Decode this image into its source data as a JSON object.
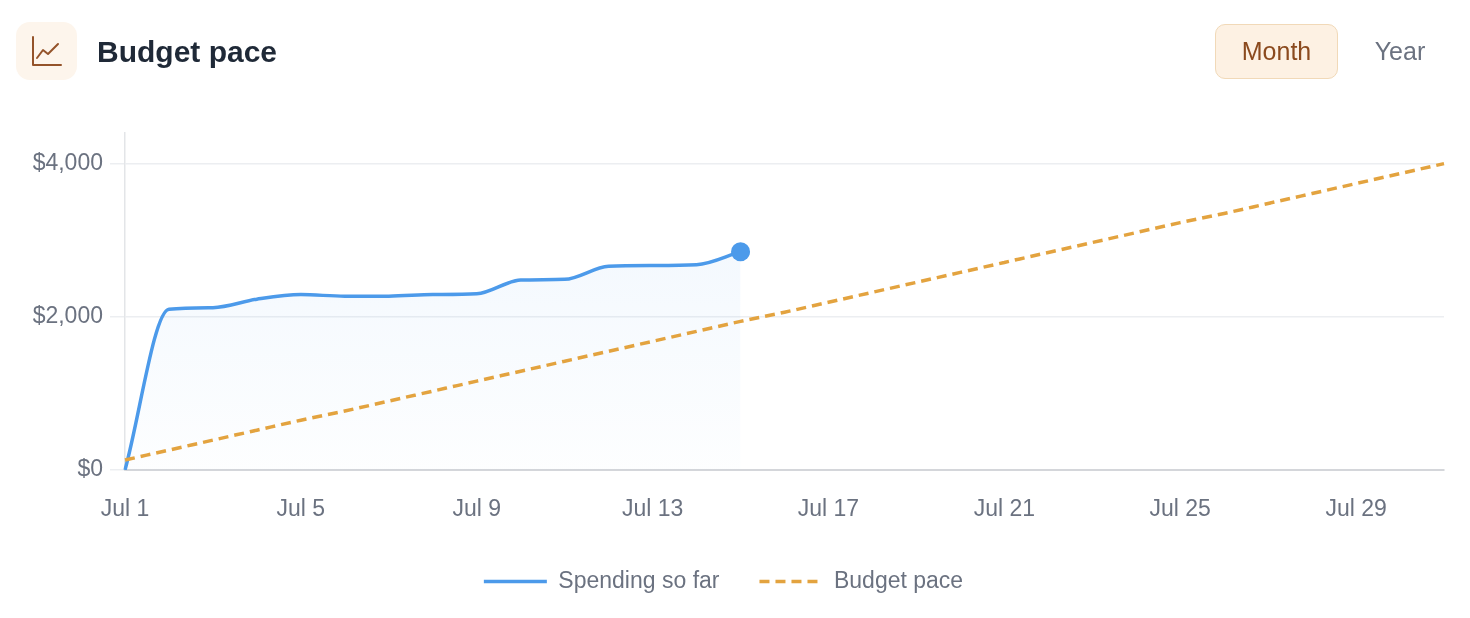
{
  "chart_data": {
    "type": "line",
    "title": "Budget pace",
    "annotations": [
      "Month",
      "Year"
    ],
    "categories": [
      "Jul 1",
      null,
      null,
      null,
      "Jul 5",
      null,
      null,
      null,
      "Jul 9",
      null,
      null,
      null,
      "Jul 13",
      null,
      null,
      null,
      "Jul 17",
      null,
      null,
      null,
      "Jul 21",
      null,
      null,
      null,
      "Jul 25",
      null,
      null,
      null,
      "Jul 29",
      null,
      null
    ],
    "series": [
      {
        "name": "Spending so far",
        "type": "area",
        "color": "#4c9aea",
        "values": [
          0,
          2100,
          2120,
          2230,
          2290,
          2270,
          2270,
          2290,
          2300,
          2480,
          2490,
          2660,
          2670,
          2680,
          2850,
          null,
          null,
          null,
          null,
          null,
          null,
          null,
          null,
          null,
          null,
          null,
          null,
          null,
          null,
          null,
          null
        ]
      },
      {
        "name": "Budget pace",
        "color": "#e3a33f",
        "line_style": "dashed",
        "values": [
          130,
          260,
          390,
          520,
          650,
          770,
          900,
          1030,
          1160,
          1290,
          1420,
          1550,
          1680,
          1810,
          1940,
          2060,
          2190,
          2320,
          2450,
          2580,
          2710,
          2840,
          2970,
          3100,
          3230,
          3350,
          3480,
          3610,
          3740,
          3870,
          4000
        ]
      },
      {
        "type": "scatter",
        "color": "#4c9aea",
        "marker": "circle",
        "values": [
          null,
          null,
          null,
          null,
          null,
          null,
          null,
          null,
          null,
          null,
          null,
          null,
          null,
          null,
          2850,
          null,
          null,
          null,
          null,
          null,
          null,
          null,
          null,
          null,
          null,
          null,
          null,
          null,
          null,
          null,
          null
        ]
      }
    ],
    "ylim": [
      0,
      4400
    ],
    "yticks": [
      {
        "value": 0,
        "label": "$0"
      },
      {
        "value": 2000,
        "label": "$2,000"
      },
      {
        "value": 4000,
        "label": "$4,000"
      }
    ],
    "grid": "y",
    "legend": "bottom"
  }
}
